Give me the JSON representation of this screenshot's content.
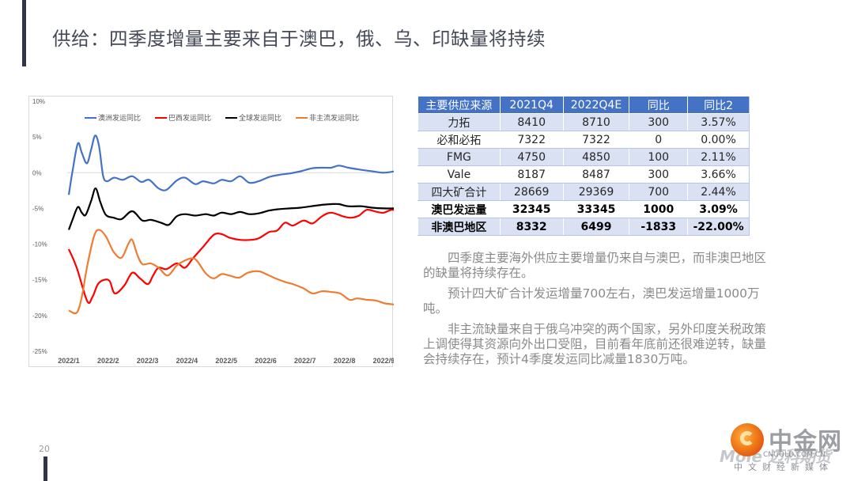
{
  "page": {
    "title": "供给：四季度增量主要来自于澳巴，俄、乌、印缺量将持续",
    "page_number": "20"
  },
  "table": {
    "headers": [
      "主要供应来源",
      "2021Q4",
      "2022Q4E",
      "同比",
      "同比2"
    ],
    "rows": [
      {
        "cells": [
          "力拓",
          "8410",
          "8710",
          "300",
          "3.57%"
        ],
        "bold": false
      },
      {
        "cells": [
          "必和必拓",
          "7322",
          "7322",
          "0",
          "0.00%"
        ],
        "bold": false
      },
      {
        "cells": [
          "FMG",
          "4750",
          "4850",
          "100",
          "2.11%"
        ],
        "bold": false
      },
      {
        "cells": [
          "Vale",
          "8187",
          "8487",
          "300",
          "3.66%"
        ],
        "bold": false
      },
      {
        "cells": [
          "四大矿合计",
          "28669",
          "29369",
          "700",
          "2.44%"
        ],
        "bold": false
      },
      {
        "cells": [
          "澳巴发运量",
          "32345",
          "33345",
          "1000",
          "3.09%"
        ],
        "bold": true
      },
      {
        "cells": [
          "非澳巴地区",
          "8332",
          "6499",
          "-1833",
          "-22.00%"
        ],
        "bold": true
      }
    ],
    "header_color": "#4472c4",
    "band_color": "#d9e1f2"
  },
  "notes": [
    "四季度主要海外供应主要增量仍来自与澳巴，而非澳巴地区的缺量将持续存在。",
    "预计四大矿合计发运增量700左右，澳巴发运增量1000万吨。",
    "非主流缺量来自于俄乌冲突的两个国家，另外印度关税政策上调使得其资源向外出口受阻，目前看年底前还很难逆转，缺量会持续存在，预计4季度发运同比减量1830万吨。"
  ],
  "logo": {
    "icon": "cngold-swirl-logo-icon",
    "name": "中金网",
    "watermark": "Mole 迈科期货",
    "domain": "CNGOLD.COM.CN",
    "tagline": "中文财经新媒体"
  },
  "chart_data": {
    "type": "line",
    "title": "",
    "xlabel": "",
    "ylabel": "",
    "x_tick_labels": [
      "2022/1",
      "2022/2",
      "2022/3",
      "2022/4",
      "2022/5",
      "2022/6",
      "2022/7",
      "2022/8",
      "2022/9"
    ],
    "x_unit": "months since 2022/1",
    "xlim": [
      0,
      8.5
    ],
    "y_tick_labels": [
      "10%",
      "5%",
      "0%",
      "-5%",
      "-10%",
      "-15%",
      "-20%",
      "-25%"
    ],
    "y_ticks": [
      10,
      5,
      0,
      -5,
      -10,
      -15,
      -20,
      -25
    ],
    "ylim": [
      -25,
      10
    ],
    "y_unit": "percent",
    "grid": false,
    "zero_line": true,
    "legend_position": "top-center",
    "series": [
      {
        "name": "澳洲发运同比",
        "color": "#4472c4",
        "x": [
          0.0,
          0.1,
          0.23,
          0.33,
          0.46,
          0.57,
          0.67,
          0.77,
          0.87,
          0.97,
          1.15,
          1.37,
          1.61,
          1.84,
          2.04,
          2.28,
          2.48,
          2.74,
          2.95,
          3.21,
          3.41,
          3.68,
          3.88,
          4.12,
          4.35,
          4.58,
          4.82,
          5.09,
          5.35,
          5.62,
          5.89,
          6.16,
          6.43,
          6.66,
          6.86,
          7.1,
          7.43,
          7.7,
          8.0,
          8.3,
          8.5
        ],
        "values": [
          -3.1,
          0.4,
          4.1,
          2.8,
          1.3,
          3.3,
          5.2,
          3.7,
          -0.4,
          -1.2,
          -0.7,
          -1.0,
          -0.5,
          -1.3,
          -1.0,
          -2.2,
          -2.4,
          -1.1,
          -0.7,
          -1.6,
          -1.2,
          -1.5,
          -1.0,
          -1.2,
          -0.5,
          -1.4,
          -1.2,
          -0.6,
          -0.3,
          -0.1,
          0.2,
          0.6,
          0.7,
          0.7,
          1.0,
          0.7,
          0.4,
          0.2,
          0.0,
          0.2,
          0.3
        ]
      },
      {
        "name": "巴西发运同比",
        "color": "#ff0000",
        "x": [
          0.0,
          0.2,
          0.47,
          0.6,
          0.74,
          0.9,
          1.04,
          1.17,
          1.41,
          1.61,
          1.81,
          2.01,
          2.14,
          2.28,
          2.48,
          2.74,
          2.95,
          3.15,
          3.41,
          3.68,
          3.88,
          4.08,
          4.35,
          4.62,
          4.82,
          5.09,
          5.29,
          5.49,
          5.69,
          5.96,
          6.19,
          6.43,
          6.66,
          6.96,
          7.17,
          7.37,
          7.57,
          7.83,
          8.0,
          8.23,
          8.5
        ],
        "values": [
          -10.7,
          -13.3,
          -18.0,
          -17.4,
          -15.6,
          -15.0,
          -15.2,
          -16.9,
          -15.8,
          -14.0,
          -14.8,
          -15.6,
          -14.4,
          -13.3,
          -13.5,
          -12.7,
          -13.3,
          -12.0,
          -10.4,
          -8.7,
          -8.6,
          -9.1,
          -9.4,
          -9.4,
          -9.2,
          -8.3,
          -8.1,
          -7.0,
          -7.4,
          -6.7,
          -7.1,
          -6.1,
          -5.6,
          -6.1,
          -6.3,
          -6.0,
          -5.2,
          -5.5,
          -5.6,
          -5.2,
          -6.0
        ]
      },
      {
        "name": "全球发运同比",
        "color": "#000000",
        "x": [
          0.0,
          0.1,
          0.23,
          0.33,
          0.43,
          0.57,
          0.68,
          0.8,
          0.94,
          1.14,
          1.34,
          1.61,
          1.87,
          2.08,
          2.34,
          2.54,
          2.74,
          2.95,
          3.21,
          3.48,
          3.68,
          3.88,
          4.12,
          4.35,
          4.58,
          4.82,
          5.09,
          5.35,
          5.62,
          5.89,
          6.16,
          6.43,
          6.66,
          6.86,
          7.1,
          7.43,
          7.7,
          8.0,
          8.3,
          8.5
        ],
        "values": [
          -8.0,
          -6.5,
          -4.8,
          -5.6,
          -5.9,
          -3.9,
          -2.2,
          -4.1,
          -5.9,
          -6.3,
          -6.5,
          -5.4,
          -6.7,
          -6.6,
          -7.0,
          -7.3,
          -6.1,
          -5.8,
          -6.0,
          -5.8,
          -6.0,
          -5.6,
          -5.8,
          -5.5,
          -5.8,
          -5.7,
          -5.3,
          -5.1,
          -5.0,
          -4.9,
          -4.7,
          -4.5,
          -4.4,
          -4.4,
          -4.7,
          -4.7,
          -4.9,
          -5.0,
          -5.0,
          -5.1
        ]
      },
      {
        "name": "非主流发运同比",
        "color": "#ed7d31",
        "x": [
          0.0,
          0.2,
          0.33,
          0.47,
          0.64,
          0.77,
          0.94,
          1.14,
          1.34,
          1.51,
          1.61,
          1.74,
          1.87,
          2.08,
          2.28,
          2.51,
          2.74,
          2.95,
          3.11,
          3.25,
          3.48,
          3.68,
          3.88,
          4.08,
          4.32,
          4.55,
          4.82,
          5.05,
          5.25,
          5.49,
          5.69,
          5.96,
          6.19,
          6.43,
          6.66,
          6.89,
          7.13,
          7.33,
          7.57,
          7.8,
          8.03,
          8.3,
          8.5
        ],
        "values": [
          -19.3,
          -19.6,
          -17.4,
          -13.0,
          -8.9,
          -8.0,
          -8.9,
          -11.1,
          -11.9,
          -10.0,
          -9.4,
          -11.5,
          -12.8,
          -12.7,
          -13.3,
          -14.4,
          -13.0,
          -12.3,
          -12.0,
          -12.3,
          -14.1,
          -14.8,
          -14.2,
          -14.4,
          -14.7,
          -14.0,
          -13.8,
          -14.3,
          -14.8,
          -15.3,
          -15.6,
          -16.2,
          -16.9,
          -16.6,
          -16.7,
          -16.9,
          -17.8,
          -17.6,
          -17.8,
          -17.9,
          -18.3,
          -18.5,
          -18.9
        ]
      }
    ]
  }
}
